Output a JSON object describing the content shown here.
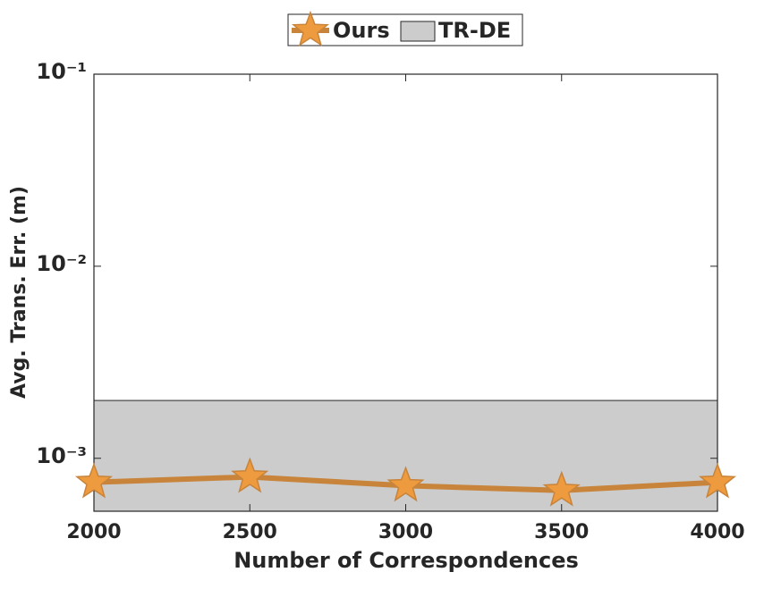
{
  "chart_data": {
    "type": "line",
    "xlabel": "Number of Correspondences",
    "ylabel": "Avg. Trans. Err. (m)",
    "x": [
      2000,
      2500,
      3000,
      3500,
      4000
    ],
    "xlim": [
      2000,
      4000
    ],
    "xticks": [
      2000,
      2500,
      3000,
      3500,
      4000
    ],
    "ylim": [
      0.00053,
      0.1
    ],
    "yscale": "log",
    "yticks": [
      {
        "value": 0.001,
        "label": "10⁻³"
      },
      {
        "value": 0.01,
        "label": "10⁻²"
      },
      {
        "value": 0.1,
        "label": "10⁻¹"
      }
    ],
    "series": [
      {
        "name": "Ours",
        "color": "#c8843a",
        "marker_color": "#ee9a3e",
        "values": [
          0.00075,
          0.0008,
          0.00072,
          0.00068,
          0.00075
        ]
      }
    ],
    "band": {
      "name": "TR-DE",
      "color": "#cccccc",
      "upper": 0.002
    }
  }
}
